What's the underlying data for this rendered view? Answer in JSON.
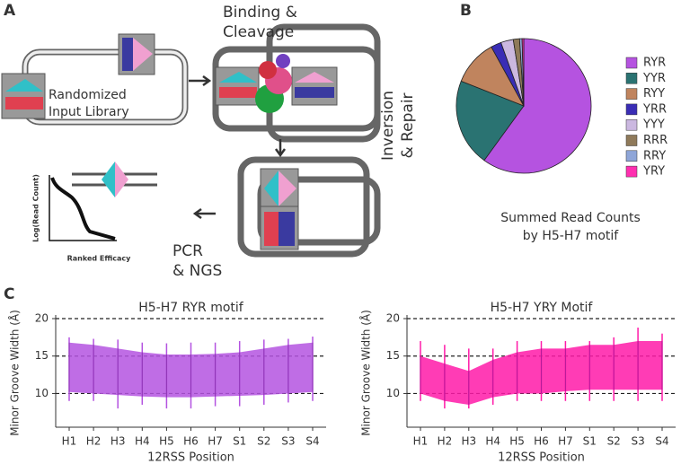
{
  "panel_labels": [
    "A",
    "B",
    "C"
  ],
  "diagram": {
    "step_binding": [
      "Binding &",
      "Cleavage"
    ],
    "input_library": [
      "Randomized",
      "Input Library"
    ],
    "step_inversion": [
      "Inversion",
      "& Repair"
    ],
    "step_pcr": [
      "PCR",
      "& NGS"
    ],
    "inset": {
      "ylabel": "Log(Read Count)",
      "xlabel": "Ranked Efficacy"
    }
  },
  "chart_data": [
    {
      "type": "pie",
      "title": [
        "Summed Read Counts",
        "by H5-H7 motif"
      ],
      "categories": [
        "RYR",
        "YYR",
        "RYY",
        "YRR",
        "YYY",
        "RRR",
        "RRY",
        "YRY"
      ],
      "values": [
        60,
        21,
        11,
        2.5,
        3,
        1.5,
        0.6,
        0.4
      ],
      "colors": [
        "#b553e0",
        "#2a7372",
        "#c0845e",
        "#3a2db5",
        "#cbb8e0",
        "#8f7a5a",
        "#8fa6d8",
        "#ff2fb0"
      ],
      "start": "top",
      "direction": "clockwise"
    },
    {
      "type": "band",
      "title": "H5-H7 RYR motif",
      "xlabel": "12RSS Position",
      "ylabel": "Minor Groove Width (Å)",
      "categories": [
        "H1",
        "H2",
        "H3",
        "H4",
        "H5",
        "H6",
        "H7",
        "S1",
        "S2",
        "S3",
        "S4"
      ],
      "band_upper": [
        16.8,
        16.5,
        16,
        15.5,
        15.2,
        15.2,
        15.3,
        15.5,
        16,
        16.5,
        16.8
      ],
      "band_lower": [
        10.2,
        10,
        9.8,
        9.6,
        9.5,
        9.5,
        9.6,
        9.7,
        9.8,
        10,
        10.2
      ],
      "max": [
        17.5,
        17.3,
        17.2,
        16.8,
        16.7,
        16.8,
        16.8,
        17,
        17.2,
        17.3,
        17.6
      ],
      "min": [
        9,
        9,
        8,
        8.5,
        8,
        8,
        8.3,
        8.3,
        8.5,
        8.8,
        9
      ],
      "color": "#b453e0",
      "ylim": [
        5.5,
        20
      ],
      "yticks": [
        10,
        15,
        20
      ],
      "grid": true
    },
    {
      "type": "band",
      "title": "H5-H7 YRY Motif",
      "xlabel": "12RSS Position",
      "ylabel": "Minor Groove Width (Å)",
      "categories": [
        "H1",
        "H2",
        "H3",
        "H4",
        "H5",
        "H6",
        "H7",
        "S1",
        "S2",
        "S3",
        "S4"
      ],
      "band_upper": [
        15,
        14,
        13,
        14.5,
        15.5,
        16,
        16,
        16.5,
        16.5,
        17,
        17
      ],
      "band_lower": [
        10,
        9,
        8.5,
        9.5,
        10,
        10,
        10.3,
        10.5,
        10.5,
        10.5,
        10.5
      ],
      "max": [
        17,
        16.5,
        16,
        16,
        17,
        17,
        17,
        17,
        17.5,
        18.8,
        18
      ],
      "min": [
        9,
        8,
        8,
        8.5,
        9,
        9,
        9,
        9,
        9,
        9,
        9
      ],
      "color": "#ff1aa8",
      "ylim": [
        5.5,
        20
      ],
      "yticks": [
        10,
        15,
        20
      ],
      "grid": true
    }
  ]
}
